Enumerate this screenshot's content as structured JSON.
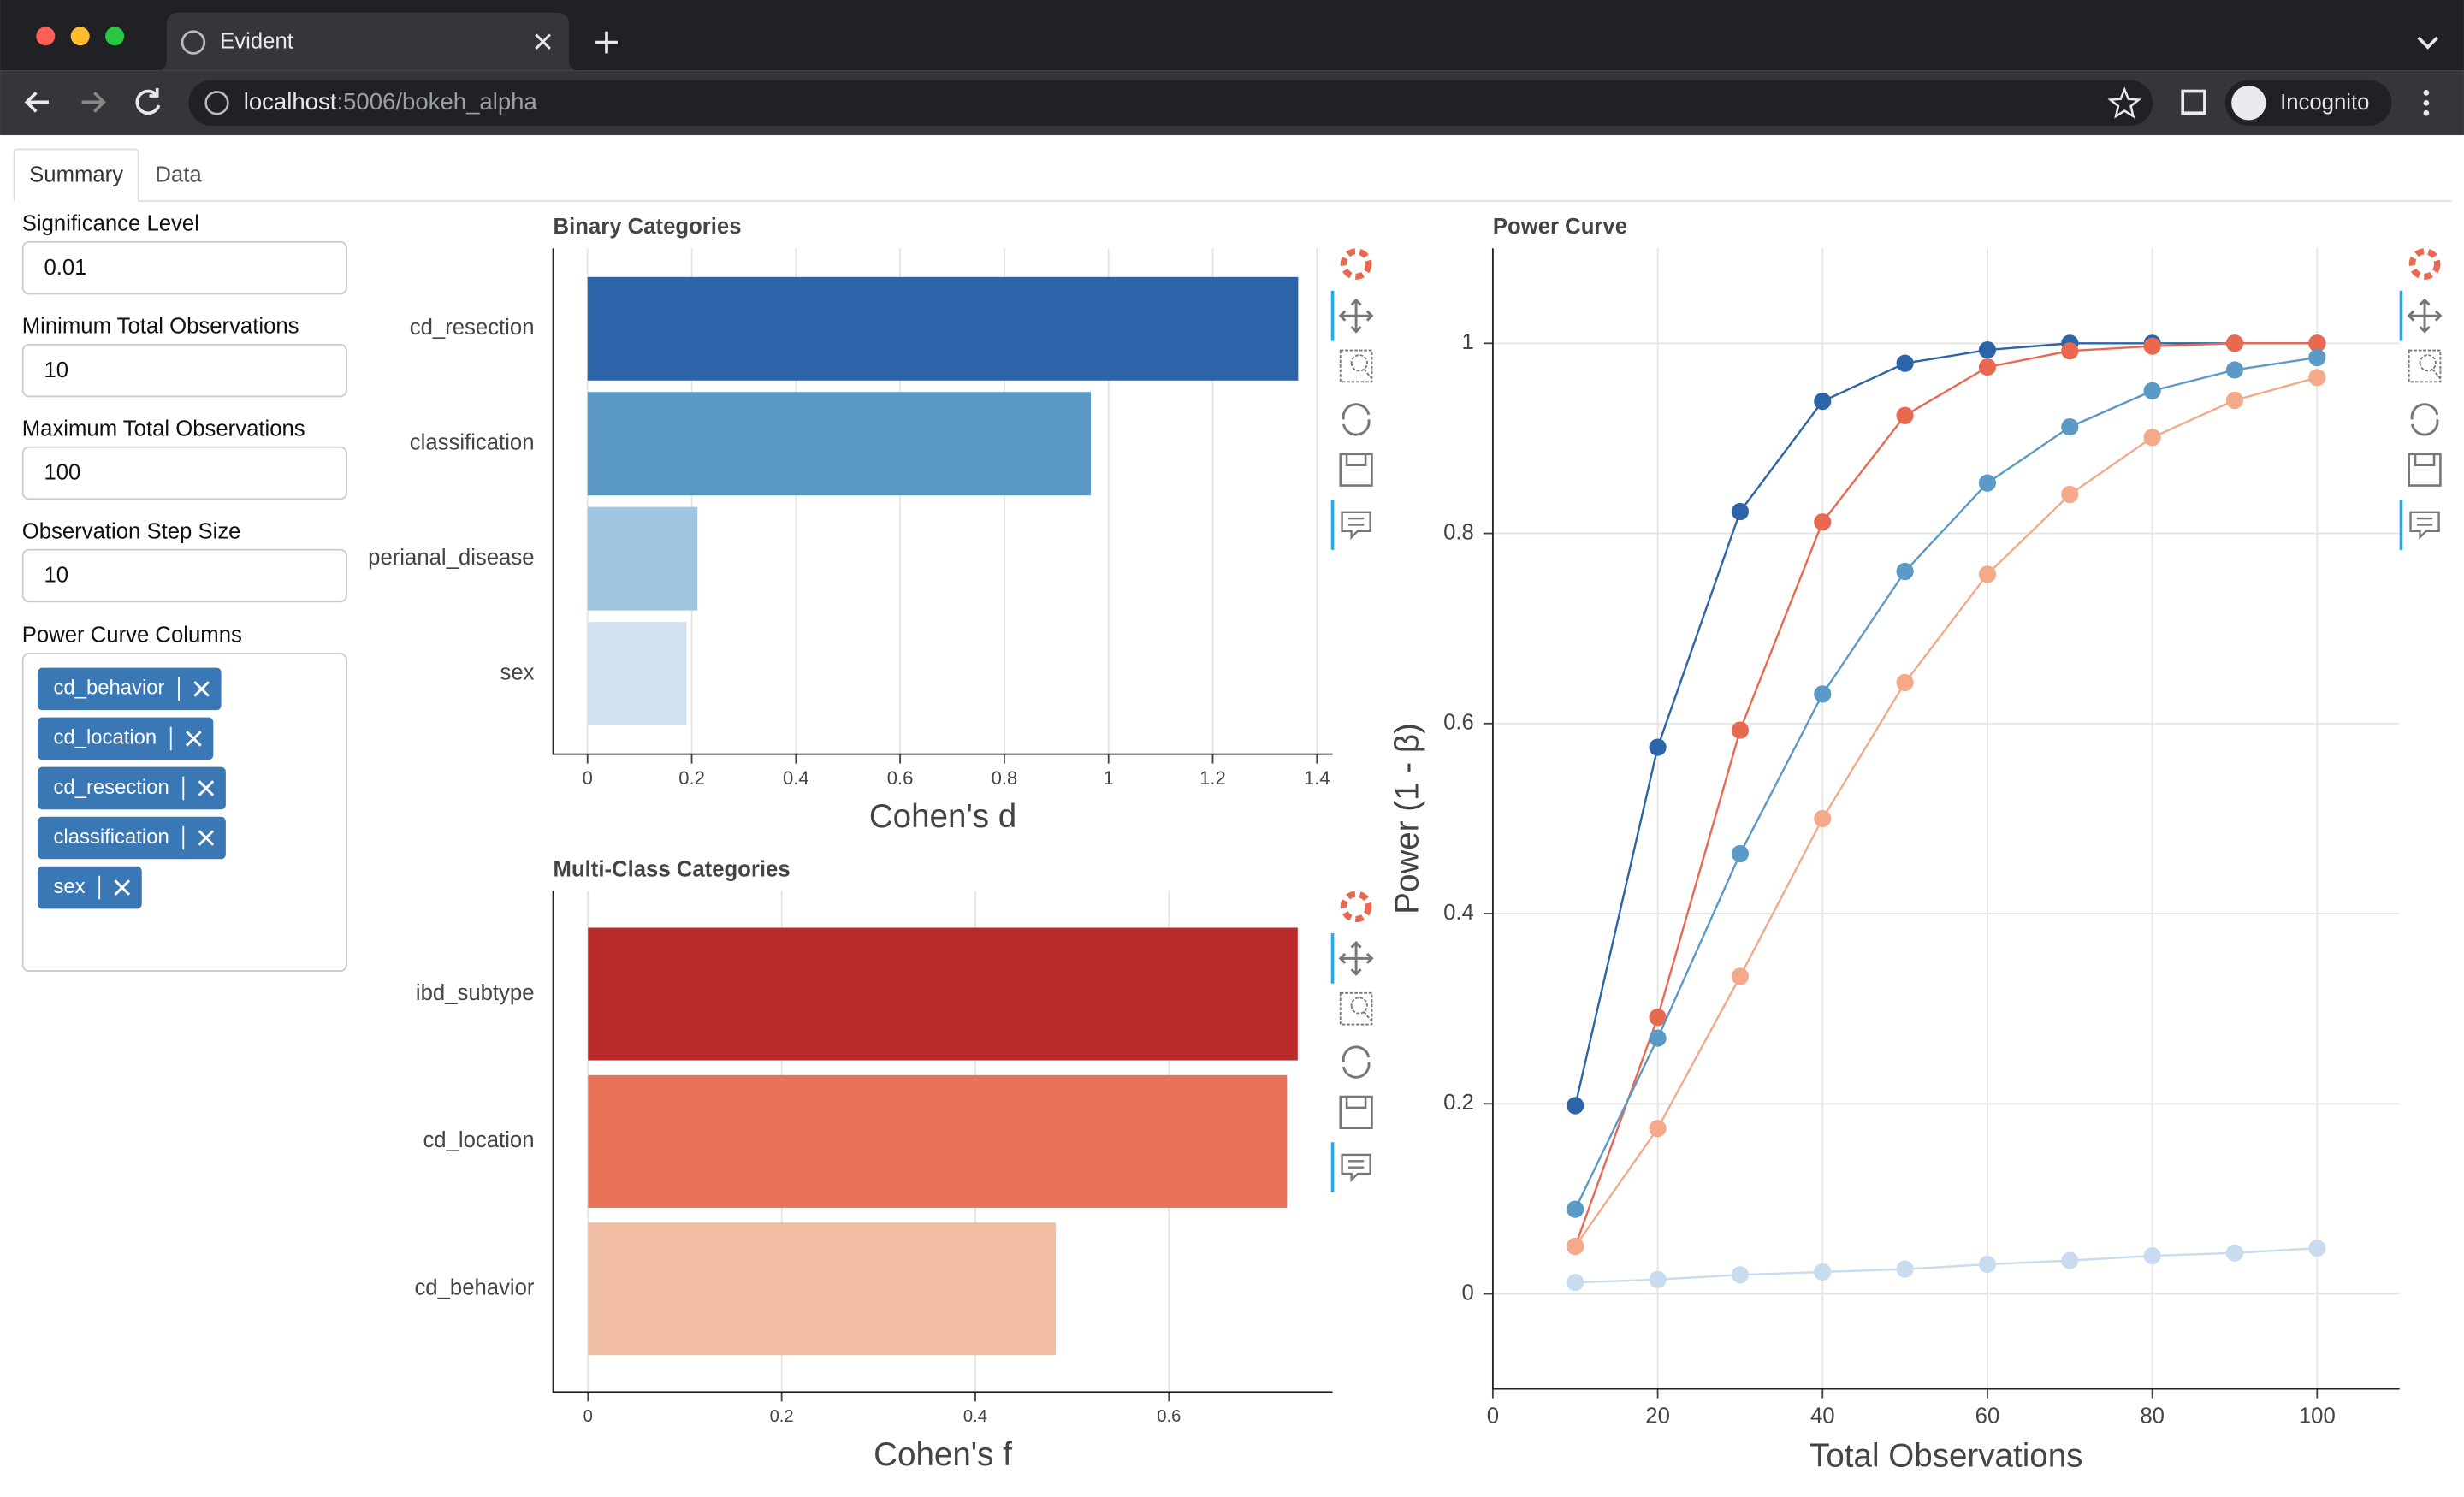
{
  "browser": {
    "tab_title": "Evident",
    "url_host": "localhost",
    "url_path": ":5006/bokeh_alpha",
    "profile": "Incognito"
  },
  "tabs": [
    "Summary",
    "Data"
  ],
  "fields": [
    {
      "label": "Significance Level",
      "value": "0.01"
    },
    {
      "label": "Minimum Total Observations",
      "value": "10"
    },
    {
      "label": "Maximum Total Observations",
      "value": "100"
    },
    {
      "label": "Observation Step Size",
      "value": "10"
    }
  ],
  "power_curve_columns": {
    "label": "Power Curve Columns",
    "tags": [
      "cd_behavior",
      "cd_location",
      "cd_resection",
      "classification",
      "sex"
    ]
  },
  "chart_data": [
    {
      "type": "hbar",
      "title": "Binary Categories",
      "x_label": "Cohen's d",
      "categories": [
        "cd_resection",
        "classification",
        "perianal_disease",
        "sex"
      ],
      "values": [
        1.364,
        0.966,
        0.211,
        0.19
      ],
      "colors": [
        "#2b64a8",
        "#5b99c7",
        "#9fc5e0",
        "#d2e1f0"
      ],
      "xlim": [
        -0.066,
        1.43
      ],
      "xticks": [
        0,
        0.2,
        0.4,
        0.6,
        0.8,
        1,
        1.2,
        1.4
      ],
      "grid": true
    },
    {
      "type": "hbar",
      "title": "Multi-Class Categories",
      "x_label": "Cohen's f",
      "categories": [
        "ibd_subtype",
        "cd_location",
        "cd_behavior"
      ],
      "values": [
        0.733,
        0.722,
        0.483
      ],
      "colors": [
        "#b92b2b",
        "#e87358",
        "#f2bda5"
      ],
      "xlim": [
        -0.036,
        0.769
      ],
      "xticks": [
        0,
        0.2,
        0.4,
        0.6
      ],
      "grid": true
    },
    {
      "type": "line",
      "title": "Power Curve",
      "x_label": "Total Observations",
      "y_label": "Power (1 - β)",
      "x": [
        10,
        20,
        30,
        40,
        50,
        60,
        70,
        80,
        90,
        100
      ],
      "series": [
        {
          "color": "#2b64a8",
          "values": [
            0.198,
            0.575,
            0.823,
            0.939,
            0.979,
            0.993,
            1,
            1,
            1,
            1
          ]
        },
        {
          "color": "#e8694f",
          "values": [
            0.05,
            0.291,
            0.593,
            0.812,
            0.924,
            0.975,
            0.992,
            0.997,
            1,
            1
          ]
        },
        {
          "color": "#5b99c7",
          "values": [
            0.089,
            0.269,
            0.463,
            0.631,
            0.76,
            0.853,
            0.912,
            0.95,
            0.972,
            0.985
          ]
        },
        {
          "color": "#f4a98a",
          "values": [
            0.05,
            0.174,
            0.334,
            0.5,
            0.643,
            0.757,
            0.841,
            0.901,
            0.94,
            0.964
          ]
        },
        {
          "color": "#c9dbef",
          "values": [
            0.012,
            0.015,
            0.02,
            0.023,
            0.026,
            0.031,
            0.035,
            0.04,
            0.043,
            0.048
          ]
        }
      ],
      "xlim": [
        0,
        110
      ],
      "ylim": [
        -0.1,
        1.1
      ],
      "xticks": [
        0,
        20,
        40,
        60,
        80,
        100
      ],
      "yticks": [
        0,
        0.2,
        0.4,
        0.6,
        0.8,
        1
      ],
      "grid": true
    }
  ]
}
